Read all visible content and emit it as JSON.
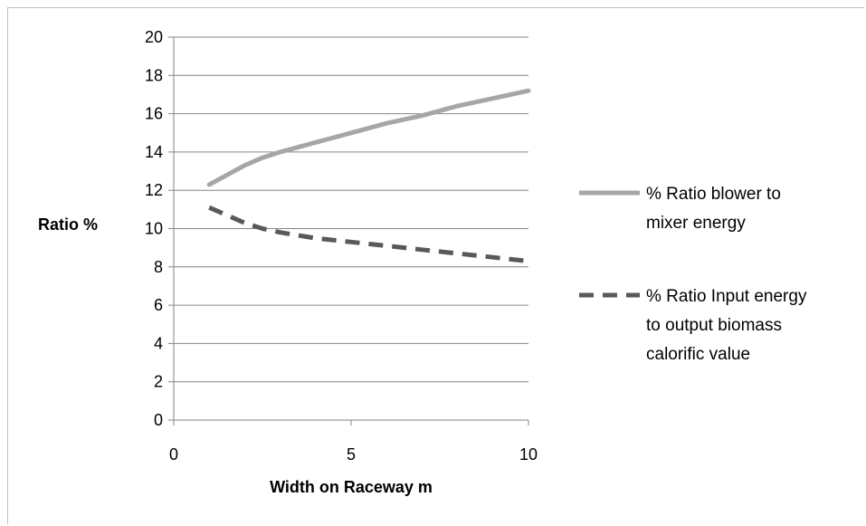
{
  "chart_data": {
    "type": "line",
    "title": "",
    "xlabel": "Width on Raceway m",
    "ylabel": "Ratio %",
    "xlim": [
      0,
      10
    ],
    "ylim": [
      0,
      20
    ],
    "x_ticks": [
      "0",
      "5",
      "10"
    ],
    "y_ticks": [
      "0",
      "2",
      "4",
      "6",
      "8",
      "10",
      "12",
      "14",
      "16",
      "18",
      "20"
    ],
    "grid": "horizontal",
    "legend_position": "right",
    "series": [
      {
        "name": "% Ratio blower to mixer energy",
        "color": "#a6a6a6",
        "style": "solid",
        "x": [
          1,
          1.5,
          2,
          2.5,
          3,
          4,
          5,
          6,
          7,
          8,
          9,
          10
        ],
        "y": [
          12.3,
          12.8,
          13.3,
          13.7,
          14.0,
          14.5,
          15.0,
          15.5,
          15.9,
          16.4,
          16.8,
          17.2
        ]
      },
      {
        "name": "% Ratio Input energy to output biomass calorific value",
        "color": "#595959",
        "style": "dashed",
        "x": [
          1,
          1.5,
          2,
          2.5,
          3,
          4,
          5,
          6,
          7,
          8,
          9,
          10
        ],
        "y": [
          11.1,
          10.7,
          10.3,
          10.0,
          9.8,
          9.5,
          9.3,
          9.1,
          8.9,
          8.7,
          8.5,
          8.3
        ]
      }
    ]
  }
}
